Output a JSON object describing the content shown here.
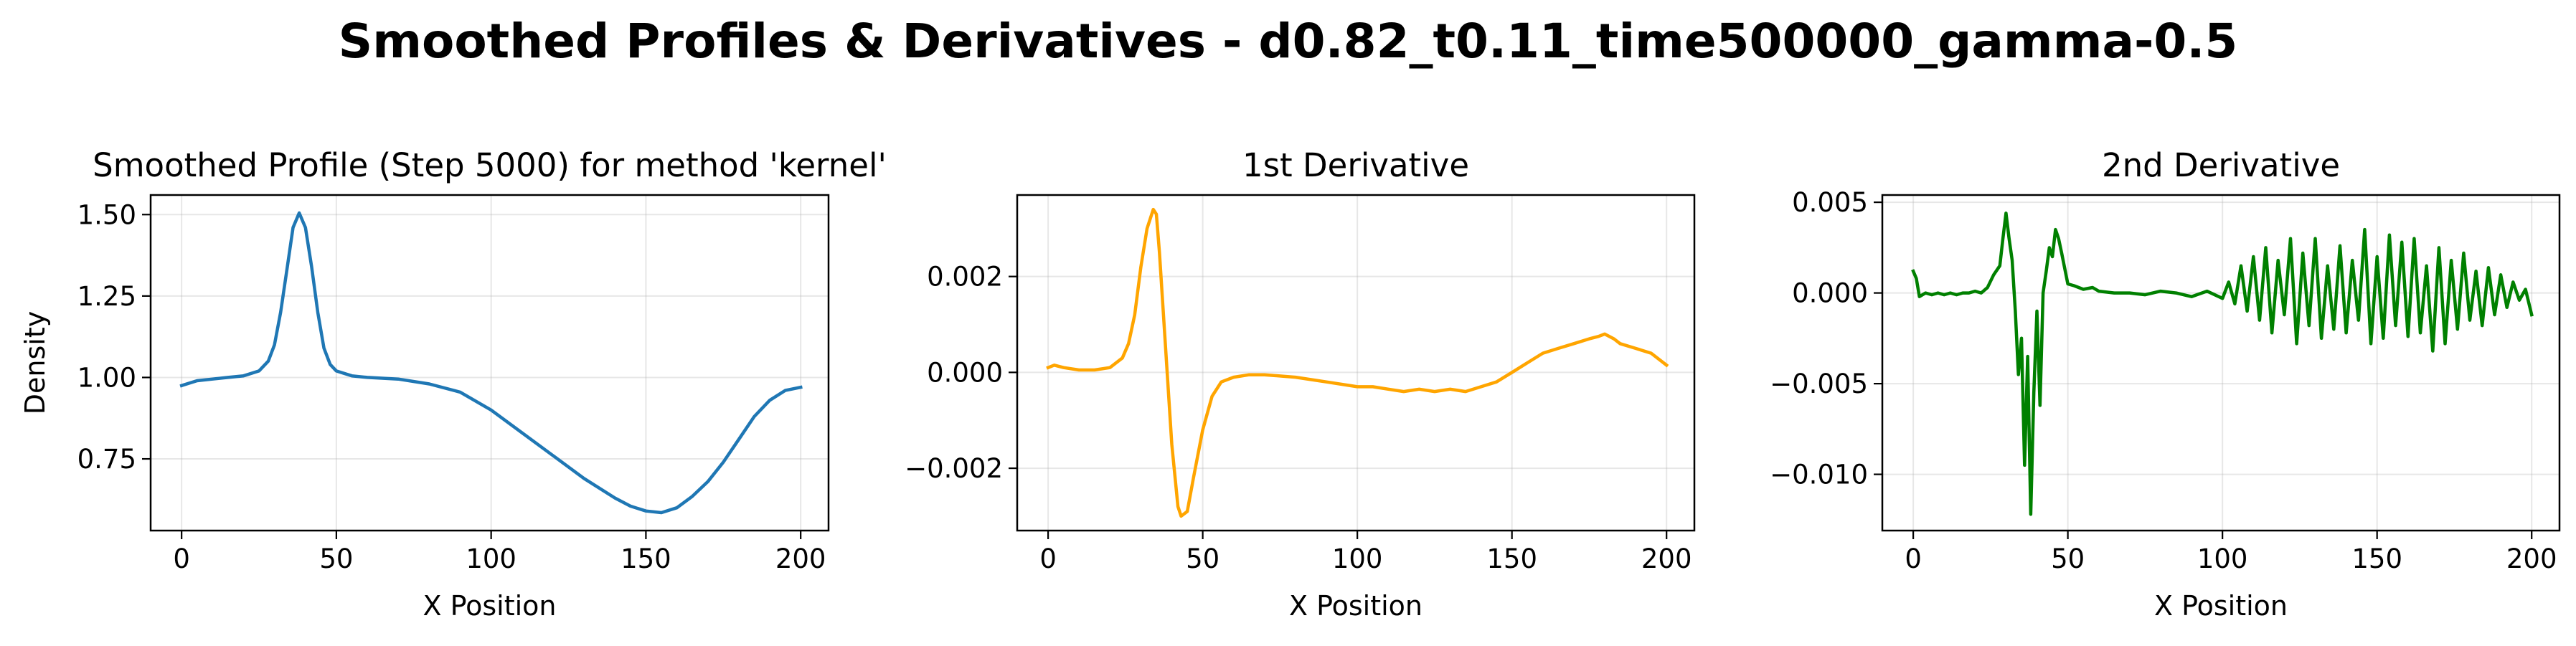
{
  "figure": {
    "suptitle": "Smoothed Profiles & Derivatives - d0.82_t0.11_time500000_gamma-0.5"
  },
  "chart_data": [
    {
      "type": "line",
      "title": "Smoothed Profile (Step 5000) for method 'kernel'",
      "xlabel": "X Position",
      "ylabel": "Density",
      "xlim": [
        -10,
        209
      ],
      "ylim": [
        0.53,
        1.56
      ],
      "xticks": [
        0,
        50,
        100,
        150,
        200
      ],
      "xtick_labels": [
        "0",
        "50",
        "100",
        "150",
        "200"
      ],
      "yticks": [
        0.75,
        1.0,
        1.25,
        1.5
      ],
      "ytick_labels": [
        "0.75",
        "1.00",
        "1.25",
        "1.50"
      ],
      "grid": true,
      "color": "#1f77b4",
      "x": [
        0,
        5,
        10,
        15,
        20,
        25,
        28,
        30,
        32,
        34,
        36,
        38,
        40,
        42,
        44,
        46,
        48,
        50,
        55,
        60,
        70,
        80,
        90,
        100,
        110,
        120,
        130,
        140,
        145,
        150,
        155,
        160,
        165,
        170,
        175,
        180,
        185,
        190,
        195,
        200
      ],
      "y": [
        0.975,
        0.99,
        0.995,
        1.0,
        1.005,
        1.02,
        1.05,
        1.1,
        1.2,
        1.33,
        1.46,
        1.505,
        1.46,
        1.34,
        1.2,
        1.09,
        1.04,
        1.02,
        1.005,
        1.0,
        0.995,
        0.98,
        0.955,
        0.9,
        0.83,
        0.76,
        0.69,
        0.63,
        0.605,
        0.59,
        0.585,
        0.6,
        0.635,
        0.68,
        0.74,
        0.81,
        0.88,
        0.93,
        0.96,
        0.97
      ]
    },
    {
      "type": "line",
      "title": "1st Derivative",
      "xlabel": "X Position",
      "ylabel": "",
      "xlim": [
        -10,
        209
      ],
      "ylim": [
        -0.0033,
        0.0037
      ],
      "xticks": [
        0,
        50,
        100,
        150,
        200
      ],
      "xtick_labels": [
        "0",
        "50",
        "100",
        "150",
        "200"
      ],
      "yticks": [
        -0.002,
        0.0,
        0.002
      ],
      "ytick_labels": [
        "−0.002",
        "0.000",
        "0.002"
      ],
      "grid": true,
      "color": "#ffa500",
      "x": [
        0,
        2,
        5,
        10,
        15,
        20,
        24,
        26,
        28,
        30,
        32,
        34,
        35,
        36,
        38,
        40,
        42,
        43,
        45,
        47,
        50,
        53,
        56,
        60,
        65,
        70,
        80,
        90,
        100,
        105,
        110,
        115,
        120,
        125,
        130,
        135,
        140,
        145,
        150,
        155,
        160,
        165,
        170,
        175,
        178,
        180,
        183,
        185,
        190,
        195,
        200
      ],
      "y": [
        0.0001,
        0.00015,
        0.0001,
        5e-05,
        5e-05,
        0.0001,
        0.0003,
        0.0006,
        0.0012,
        0.0022,
        0.003,
        0.0034,
        0.0033,
        0.0025,
        0.0005,
        -0.0015,
        -0.0028,
        -0.003,
        -0.0029,
        -0.0022,
        -0.0012,
        -0.0005,
        -0.0002,
        -0.0001,
        -5e-05,
        -5e-05,
        -0.0001,
        -0.0002,
        -0.0003,
        -0.0003,
        -0.00035,
        -0.0004,
        -0.00035,
        -0.0004,
        -0.00035,
        -0.0004,
        -0.0003,
        -0.0002,
        0.0,
        0.0002,
        0.0004,
        0.0005,
        0.0006,
        0.0007,
        0.00075,
        0.0008,
        0.0007,
        0.0006,
        0.0005,
        0.0004,
        0.00015
      ]
    },
    {
      "type": "line",
      "title": "2nd Derivative",
      "xlabel": "X Position",
      "ylabel": "",
      "xlim": [
        -10,
        209
      ],
      "ylim": [
        -0.0131,
        0.0054
      ],
      "xticks": [
        0,
        50,
        100,
        150,
        200
      ],
      "xtick_labels": [
        "0",
        "50",
        "100",
        "150",
        "200"
      ],
      "yticks": [
        -0.01,
        -0.005,
        0.0,
        0.005
      ],
      "ytick_labels": [
        "−0.010",
        "−0.005",
        "0.000",
        "0.005"
      ],
      "grid": true,
      "color": "#008000",
      "x": [
        0,
        1,
        2,
        4,
        6,
        8,
        10,
        12,
        14,
        16,
        18,
        20,
        22,
        24,
        26,
        28,
        29,
        30,
        31,
        32,
        33,
        34,
        35,
        36,
        37,
        38,
        39,
        40,
        41,
        42,
        43,
        44,
        45,
        46,
        47,
        48,
        50,
        52,
        55,
        58,
        60,
        65,
        70,
        75,
        80,
        85,
        90,
        95,
        100,
        102,
        104,
        106,
        108,
        110,
        112,
        114,
        116,
        118,
        120,
        122,
        124,
        126,
        128,
        130,
        132,
        134,
        136,
        138,
        140,
        142,
        144,
        146,
        148,
        150,
        152,
        154,
        156,
        158,
        160,
        162,
        164,
        166,
        168,
        170,
        172,
        174,
        176,
        178,
        180,
        182,
        184,
        186,
        188,
        190,
        192,
        194,
        196,
        198,
        200
      ],
      "y": [
        0.0012,
        0.0008,
        -0.0002,
        0.0,
        -0.0001,
        0.0,
        -0.0001,
        0.0,
        -0.0001,
        0.0,
        0.0,
        0.0001,
        0.0,
        0.0003,
        0.001,
        0.0015,
        0.003,
        0.0044,
        0.003,
        0.0018,
        -0.001,
        -0.0045,
        -0.0025,
        -0.0095,
        -0.0035,
        -0.0122,
        -0.0055,
        -0.001,
        -0.0062,
        0.0,
        0.0012,
        0.0025,
        0.002,
        0.0035,
        0.003,
        0.0022,
        0.0005,
        0.0004,
        0.0002,
        0.0003,
        0.0001,
        0.0,
        0.0,
        -0.0001,
        0.0001,
        0.0,
        -0.0002,
        0.0001,
        -0.0003,
        0.0006,
        -0.0006,
        0.0015,
        -0.001,
        0.002,
        -0.0015,
        0.0025,
        -0.0022,
        0.0018,
        -0.0012,
        0.003,
        -0.0028,
        0.0022,
        -0.0018,
        0.003,
        -0.0025,
        0.0015,
        -0.002,
        0.0026,
        -0.0022,
        0.0018,
        -0.0015,
        0.0035,
        -0.0028,
        0.002,
        -0.0025,
        0.0032,
        -0.0018,
        0.0028,
        -0.0024,
        0.003,
        -0.0022,
        0.0015,
        -0.0032,
        0.0025,
        -0.0028,
        0.0018,
        -0.002,
        0.0022,
        -0.0015,
        0.0012,
        -0.0018,
        0.0014,
        -0.0012,
        0.001,
        -0.0008,
        0.0006,
        -0.0004,
        0.0002,
        -0.0012
      ]
    }
  ]
}
